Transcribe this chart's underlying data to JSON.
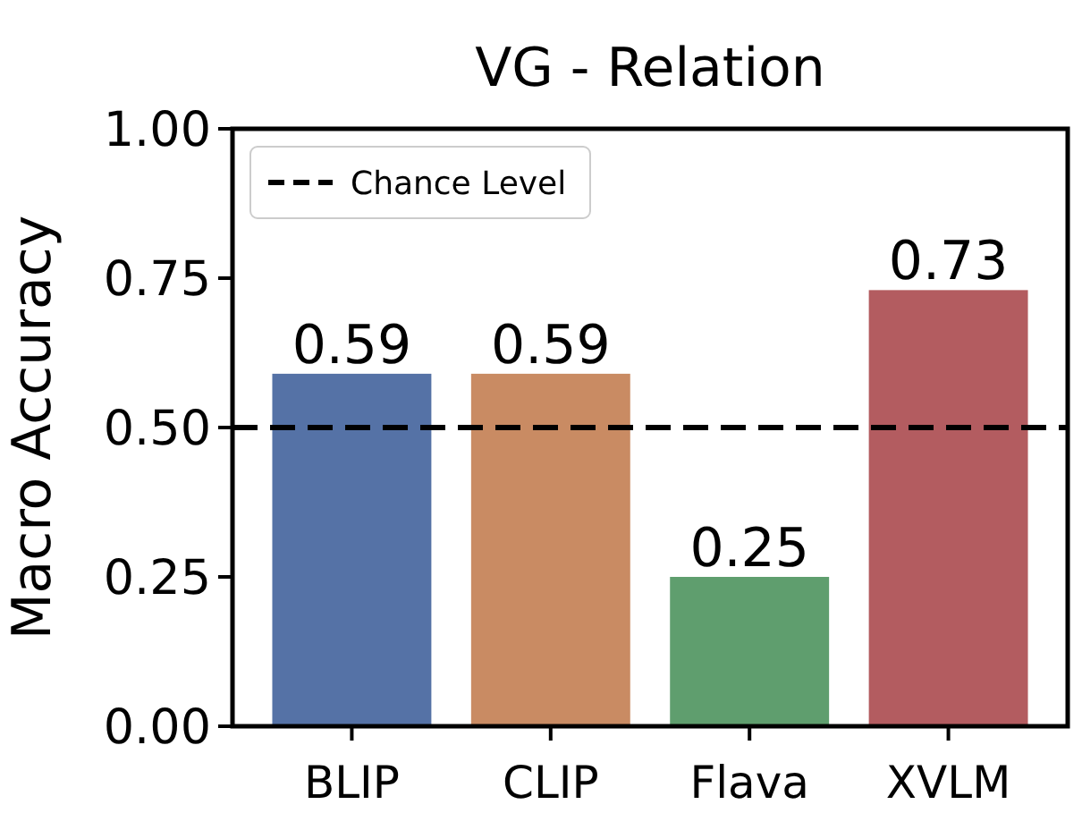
{
  "chart_data": {
    "type": "bar",
    "title": "VG - Relation",
    "ylabel": "Macro Accuracy",
    "categories": [
      "BLIP",
      "CLIP",
      "Flava",
      "XVLM"
    ],
    "values": [
      0.59,
      0.59,
      0.25,
      0.73
    ],
    "colors": [
      "#5572a6",
      "#c98b63",
      "#5f9e6e",
      "#b35c60"
    ],
    "ylim": [
      0,
      1
    ],
    "yticks": [
      {
        "value": 0,
        "label": "0.00"
      },
      {
        "value": 0.25,
        "label": "0.25"
      },
      {
        "value": 0.5,
        "label": "0.50"
      },
      {
        "value": 0.75,
        "label": "0.75"
      },
      {
        "value": 1,
        "label": "1.00"
      }
    ],
    "ref_lines": [
      {
        "axis": "y",
        "value": 0.5,
        "label": "Chance Level",
        "line_style": "dashed",
        "color": "#000000"
      }
    ],
    "data_labels": true,
    "legend": "top left"
  }
}
